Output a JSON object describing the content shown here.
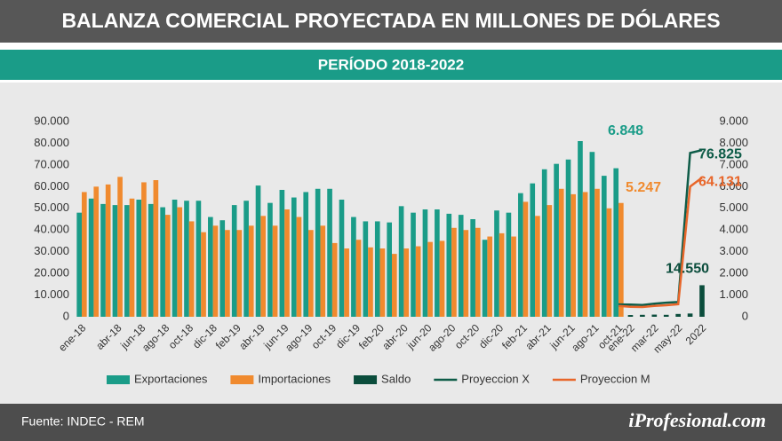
{
  "header": {
    "title": "BALANZA COMERCIAL PROYECTADA EN MILLONES DE DÓLARES",
    "period": "PERÍODO 2018-2022"
  },
  "footer": {
    "source": "Fuente: INDEC - REM",
    "brand": "iProfesional.com"
  },
  "chart_data": {
    "type": "bar",
    "categories": [
      "ene-18",
      null,
      null,
      "abr-18",
      null,
      "jun-18",
      null,
      "ago-18",
      null,
      "oct-18",
      null,
      "dic-18",
      null,
      "feb-19",
      null,
      "abr-19",
      null,
      "jun-19",
      null,
      "ago-19",
      null,
      "oct-19",
      null,
      "dic-19",
      null,
      "feb-20",
      null,
      "abr-20",
      null,
      "jun-20",
      null,
      "ago-20",
      null,
      "oct-20",
      null,
      "dic-20",
      null,
      "feb-21",
      null,
      "abr-21",
      null,
      "jun-21",
      null,
      "ago-21",
      null,
      "oct-21",
      "ene-22",
      null,
      "mar-22",
      null,
      "may-22",
      null,
      "2022"
    ],
    "ylim": [
      0,
      90000
    ],
    "yticks": [
      0,
      {
        "value": 10000,
        "label": "10.000"
      },
      {
        "value": 20000,
        "label": "20.000"
      },
      {
        "value": 30000,
        "label": "30.000"
      },
      {
        "value": 40000,
        "label": "40.000"
      },
      {
        "value": 50000,
        "label": "50.000"
      },
      {
        "value": 60000,
        "label": "60.000"
      },
      {
        "value": 70000,
        "label": "70.000"
      },
      {
        "value": 80000,
        "label": "80.000"
      },
      {
        "value": 90000,
        "label": "90.000"
      }
    ],
    "y2lim": [
      0,
      9000
    ],
    "y2ticks": [
      0,
      {
        "value": 1000,
        "label": "1.000"
      },
      {
        "value": 2000,
        "label": "2.000"
      },
      {
        "value": 3000,
        "label": "3.000"
      },
      {
        "value": 4000,
        "label": "4.000"
      },
      {
        "value": 5000,
        "label": "5.000"
      },
      {
        "value": 6000,
        "label": "6.000"
      },
      {
        "value": 7000,
        "label": "7.000"
      },
      {
        "value": 8000,
        "label": "8.000"
      },
      {
        "value": 9000,
        "label": "9.000"
      }
    ],
    "legend": "bottom",
    "series": [
      {
        "name": "Exportaciones",
        "type": "bar",
        "axis": "y2",
        "color": "#1a9c88",
        "values": [
          4800,
          5450,
          5200,
          5150,
          5150,
          5400,
          5200,
          5050,
          5400,
          5350,
          5350,
          4600,
          4450,
          5150,
          5350,
          6050,
          5250,
          5850,
          5500,
          5750,
          5900,
          5900,
          5400,
          4600,
          4400,
          4400,
          4350,
          5100,
          4800,
          4950,
          4950,
          4750,
          4700,
          4500,
          3550,
          4900,
          4800,
          5700,
          6150,
          6800,
          7050,
          7250,
          8100,
          7600,
          6500,
          6848,
          null,
          null,
          null,
          null,
          null,
          null,
          null
        ],
        "value_labels": [
          null,
          null,
          null,
          null,
          null,
          null,
          null,
          null,
          null,
          null,
          null,
          null,
          null,
          null,
          null,
          null,
          null,
          null,
          null,
          null,
          null,
          null,
          null,
          null,
          null,
          null,
          null,
          null,
          null,
          null,
          null,
          null,
          null,
          null,
          null,
          null,
          null,
          null,
          null,
          null,
          null,
          null,
          null,
          null,
          null,
          "6.848",
          null,
          null,
          null,
          null,
          null,
          null,
          null
        ]
      },
      {
        "name": "Importaciones",
        "type": "bar",
        "axis": "y2",
        "color": "#f08a2e",
        "values": [
          5750,
          6000,
          6100,
          6450,
          5450,
          6200,
          6300,
          4700,
          5050,
          4400,
          3900,
          4200,
          4000,
          4000,
          4200,
          4650,
          4200,
          4950,
          4600,
          4000,
          4200,
          3400,
          3150,
          3550,
          3200,
          3150,
          2900,
          3150,
          3250,
          3450,
          3500,
          4100,
          4000,
          4100,
          3700,
          3850,
          3700,
          5300,
          4650,
          5150,
          5900,
          5650,
          5750,
          5900,
          5000,
          5247,
          null,
          null,
          null,
          null,
          null,
          null,
          null
        ],
        "value_labels": [
          null,
          null,
          null,
          null,
          null,
          null,
          null,
          null,
          null,
          null,
          null,
          null,
          null,
          null,
          null,
          null,
          null,
          null,
          null,
          null,
          null,
          null,
          null,
          null,
          null,
          null,
          null,
          null,
          null,
          null,
          null,
          null,
          null,
          null,
          null,
          null,
          null,
          null,
          null,
          null,
          null,
          null,
          null,
          null,
          null,
          "5.247",
          null,
          null,
          null,
          null,
          null,
          null,
          null
        ]
      },
      {
        "name": "Saldo",
        "type": "bar",
        "color": "#0b4d3c",
        "values": [
          null,
          null,
          null,
          null,
          null,
          null,
          null,
          null,
          null,
          null,
          null,
          null,
          null,
          null,
          null,
          null,
          null,
          null,
          null,
          null,
          null,
          null,
          null,
          null,
          null,
          null,
          null,
          null,
          null,
          null,
          null,
          null,
          null,
          null,
          null,
          null,
          null,
          null,
          null,
          null,
          null,
          null,
          null,
          null,
          null,
          null,
          800,
          900,
          1000,
          900,
          1300,
          1500,
          14550
        ],
        "value_labels": [
          null,
          null,
          null,
          null,
          null,
          null,
          null,
          null,
          null,
          null,
          null,
          null,
          null,
          null,
          null,
          null,
          null,
          null,
          null,
          null,
          null,
          null,
          null,
          null,
          null,
          null,
          null,
          null,
          null,
          null,
          null,
          null,
          null,
          null,
          null,
          null,
          null,
          null,
          null,
          null,
          null,
          null,
          null,
          null,
          null,
          null,
          null,
          null,
          null,
          null,
          null,
          null,
          "14.550"
        ]
      },
      {
        "name": "Proyeccion X",
        "type": "line",
        "color": "#0e5c48",
        "values": [
          null,
          null,
          null,
          null,
          null,
          null,
          null,
          null,
          null,
          null,
          null,
          null,
          null,
          null,
          null,
          null,
          null,
          null,
          null,
          null,
          null,
          null,
          null,
          null,
          null,
          null,
          null,
          null,
          null,
          null,
          null,
          null,
          null,
          null,
          null,
          null,
          null,
          null,
          null,
          null,
          null,
          null,
          null,
          null,
          null,
          5700,
          5600,
          5400,
          6000,
          6500,
          6800,
          75500,
          76825
        ],
        "value_labels": [
          null,
          null,
          null,
          null,
          null,
          null,
          null,
          null,
          null,
          null,
          null,
          null,
          null,
          null,
          null,
          null,
          null,
          null,
          null,
          null,
          null,
          null,
          null,
          null,
          null,
          null,
          null,
          null,
          null,
          null,
          null,
          null,
          null,
          null,
          null,
          null,
          null,
          null,
          null,
          null,
          null,
          null,
          null,
          null,
          null,
          null,
          null,
          null,
          null,
          null,
          null,
          null,
          "76.825"
        ]
      },
      {
        "name": "Proyeccion M",
        "type": "line",
        "color": "#e8662a",
        "values": [
          null,
          null,
          null,
          null,
          null,
          null,
          null,
          null,
          null,
          null,
          null,
          null,
          null,
          null,
          null,
          null,
          null,
          null,
          null,
          null,
          null,
          null,
          null,
          null,
          null,
          null,
          null,
          null,
          null,
          null,
          null,
          null,
          null,
          null,
          null,
          null,
          null,
          null,
          null,
          null,
          null,
          null,
          null,
          null,
          null,
          5000,
          4600,
          4500,
          5000,
          5300,
          5800,
          60000,
          64131
        ],
        "value_labels": [
          null,
          null,
          null,
          null,
          null,
          null,
          null,
          null,
          null,
          null,
          null,
          null,
          null,
          null,
          null,
          null,
          null,
          null,
          null,
          null,
          null,
          null,
          null,
          null,
          null,
          null,
          null,
          null,
          null,
          null,
          null,
          null,
          null,
          null,
          null,
          null,
          null,
          null,
          null,
          null,
          null,
          null,
          null,
          null,
          null,
          null,
          null,
          null,
          null,
          null,
          null,
          null,
          "64.131"
        ]
      }
    ]
  }
}
